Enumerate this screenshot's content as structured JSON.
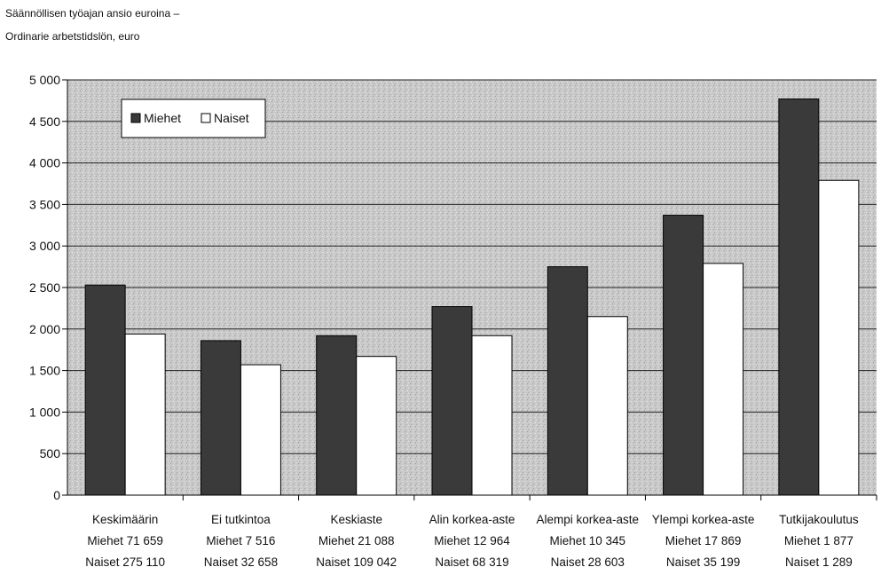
{
  "chart_data": {
    "type": "bar",
    "title_line1": "Säännöllisen työajan ansio euroina –",
    "title_line2": "Ordinarie arbetstidslön, euro",
    "categories": [
      [
        "Keskimäärin",
        "Miehet 71 659",
        "Naiset 275 110"
      ],
      [
        "Ei tutkintoa",
        "Miehet 7 516",
        "Naiset 32 658"
      ],
      [
        "Keskiaste",
        "Miehet 21 088",
        "Naiset 109 042"
      ],
      [
        "Alin korkea-aste",
        "Miehet 12 964",
        "Naiset 68 319"
      ],
      [
        "Alempi korkea-aste",
        "Miehet 10 345",
        "Naiset 28 603"
      ],
      [
        "Ylempi korkea-aste",
        "Miehet 17 869",
        "Naiset 35 199"
      ],
      [
        "Tutkijakoulutus",
        "Miehet 1 877",
        "Naiset 1 289"
      ]
    ],
    "series": [
      {
        "name": "Miehet",
        "values": [
          2530,
          1860,
          1920,
          2270,
          2750,
          3370,
          4770
        ]
      },
      {
        "name": "Naiset",
        "values": [
          1940,
          1570,
          1670,
          1920,
          2150,
          2790,
          3790
        ]
      }
    ],
    "ylim": [
      0,
      5000
    ],
    "yticks": [
      0,
      500,
      1000,
      1500,
      2000,
      2500,
      3000,
      3500,
      4000,
      4500,
      5000
    ],
    "ytick_labels": [
      "0",
      "500",
      "1 000",
      "1 500",
      "2 000",
      "2 500",
      "3 000",
      "3 500",
      "4 000",
      "4 500",
      "5 000"
    ],
    "legend_position": "top-left",
    "grid": true,
    "colors": {
      "Miehet": "#3a3a3a",
      "Naiset": "#ffffff",
      "plot_bg": "#c8c8c8",
      "gridline": "#222222"
    }
  }
}
